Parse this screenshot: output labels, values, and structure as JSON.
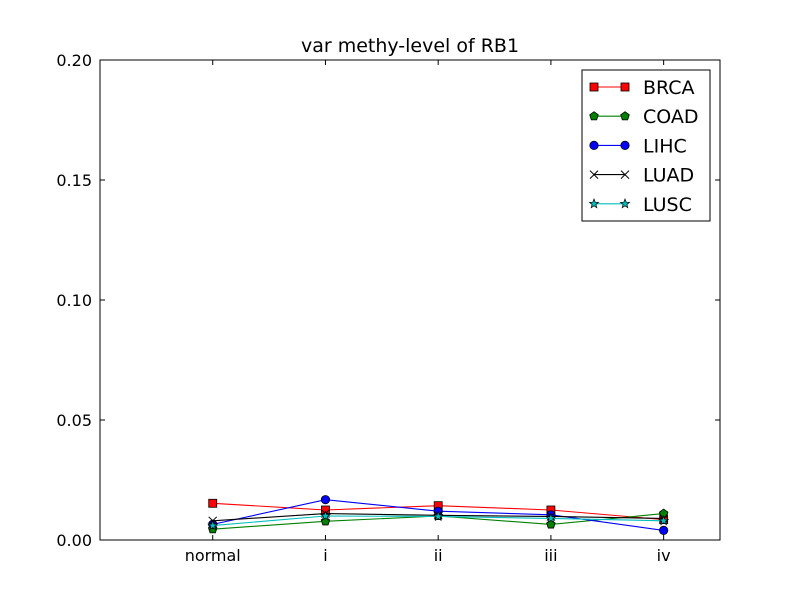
{
  "chart_data": {
    "type": "line",
    "title": "var methy-level of RB1",
    "xlabel": "",
    "ylabel": "",
    "categories": [
      "normal",
      "i",
      "ii",
      "iii",
      "iv"
    ],
    "xlim": [
      -1,
      4.5
    ],
    "ylim": [
      0,
      0.2
    ],
    "yticks": [
      0.0,
      0.05,
      0.1,
      0.15,
      0.2
    ],
    "ytick_labels": [
      "0.00",
      "0.05",
      "0.10",
      "0.15",
      "0.20"
    ],
    "grid": false,
    "legend_position": "top-right",
    "series": [
      {
        "name": "BRCA",
        "color": "#ff0000",
        "marker": "square",
        "values": [
          0.0153,
          0.0125,
          0.0143,
          0.0125,
          0.0085
        ]
      },
      {
        "name": "COAD",
        "color": "#008000",
        "marker": "pentagon",
        "values": [
          0.0045,
          0.0078,
          0.01,
          0.0065,
          0.011
        ]
      },
      {
        "name": "LIHC",
        "color": "#0000ff",
        "marker": "circle",
        "values": [
          0.0065,
          0.0168,
          0.012,
          0.0105,
          0.004
        ]
      },
      {
        "name": "LUAD",
        "color": "#000000",
        "marker": "x",
        "values": [
          0.008,
          0.011,
          0.0103,
          0.0098,
          0.009
        ]
      },
      {
        "name": "LUSC",
        "color": "#00bfbf",
        "marker": "star",
        "values": [
          0.006,
          0.01,
          0.0098,
          0.009,
          0.008
        ]
      }
    ]
  }
}
